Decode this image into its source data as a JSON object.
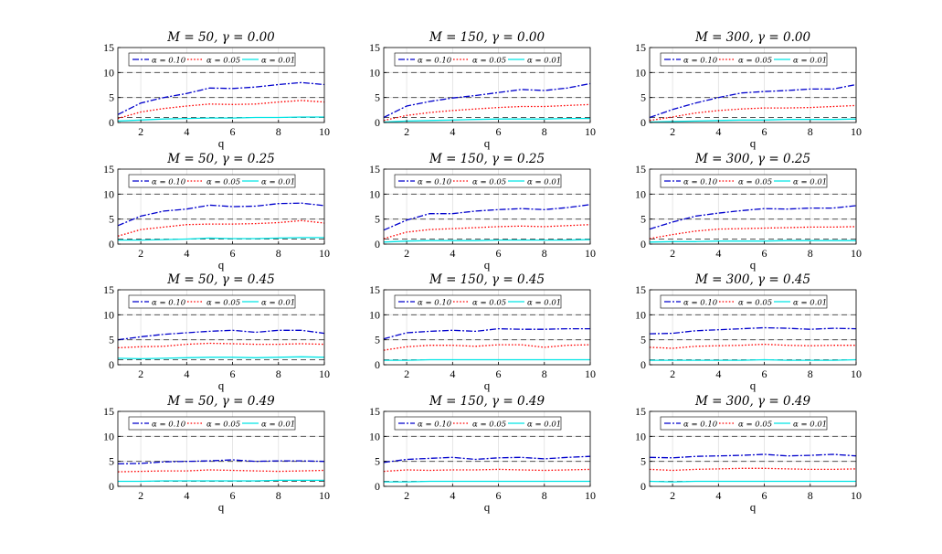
{
  "chart_data": [
    {
      "type": "line",
      "title": "M = 50, γ = 0.00",
      "xlabel": "q",
      "ylabel": "",
      "x": [
        1,
        2,
        3,
        4,
        5,
        6,
        7,
        8,
        9,
        10
      ],
      "xlim": [
        1,
        10
      ],
      "ylim": [
        0,
        15
      ],
      "xticks": [
        "2",
        "4",
        "6",
        "8",
        "10"
      ],
      "yticks": [
        "0",
        "5",
        "10",
        "15"
      ],
      "reference_lines": [
        1,
        5,
        10
      ],
      "grid": true,
      "legend_position": "top",
      "series": [
        {
          "name": "α = 0.10",
          "values": [
            1.6,
            3.9,
            5.0,
            5.8,
            6.9,
            6.8,
            7.1,
            7.6,
            8.0,
            7.6
          ]
        },
        {
          "name": "α = 0.05",
          "values": [
            0.8,
            2.1,
            2.8,
            3.3,
            3.7,
            3.6,
            3.7,
            4.1,
            4.4,
            4.1
          ]
        },
        {
          "name": "α = 0.01",
          "values": [
            0.3,
            0.5,
            0.7,
            0.8,
            0.9,
            0.9,
            1.0,
            1.0,
            1.1,
            1.1
          ]
        }
      ]
    },
    {
      "type": "line",
      "title": "M = 150, γ = 0.00",
      "xlabel": "q",
      "ylabel": "",
      "x": [
        1,
        2,
        3,
        4,
        5,
        6,
        7,
        8,
        9,
        10
      ],
      "xlim": [
        1,
        10
      ],
      "ylim": [
        0,
        15
      ],
      "xticks": [
        "2",
        "4",
        "6",
        "8",
        "10"
      ],
      "yticks": [
        "0",
        "5",
        "10",
        "15"
      ],
      "reference_lines": [
        1,
        5,
        10
      ],
      "grid": true,
      "legend_position": "top",
      "series": [
        {
          "name": "α = 0.10",
          "values": [
            1.0,
            3.3,
            4.2,
            4.9,
            5.4,
            6.0,
            6.6,
            6.4,
            6.9,
            7.8
          ]
        },
        {
          "name": "α = 0.05",
          "values": [
            0.4,
            1.4,
            2.0,
            2.4,
            2.7,
            3.0,
            3.2,
            3.2,
            3.4,
            3.6
          ]
        },
        {
          "name": "α = 0.01",
          "values": [
            0.1,
            0.3,
            0.4,
            0.5,
            0.6,
            0.7,
            0.7,
            0.7,
            0.8,
            0.8
          ]
        }
      ]
    },
    {
      "type": "line",
      "title": "M = 300, γ = 0.00",
      "xlabel": "q",
      "ylabel": "",
      "x": [
        1,
        2,
        3,
        4,
        5,
        6,
        7,
        8,
        9,
        10
      ],
      "xlim": [
        1,
        10
      ],
      "ylim": [
        0,
        15
      ],
      "xticks": [
        "2",
        "4",
        "6",
        "8",
        "10"
      ],
      "yticks": [
        "0",
        "5",
        "10",
        "15"
      ],
      "reference_lines": [
        1,
        5,
        10
      ],
      "grid": true,
      "legend_position": "top",
      "series": [
        {
          "name": "α = 0.10",
          "values": [
            1.0,
            2.6,
            3.9,
            5.0,
            5.9,
            6.2,
            6.4,
            6.7,
            6.7,
            7.6
          ]
        },
        {
          "name": "α = 0.05",
          "values": [
            0.4,
            1.1,
            1.9,
            2.4,
            2.7,
            2.9,
            2.9,
            3.0,
            3.2,
            3.4
          ]
        },
        {
          "name": "α = 0.01",
          "values": [
            0.1,
            0.2,
            0.3,
            0.4,
            0.5,
            0.5,
            0.6,
            0.6,
            0.6,
            0.7
          ]
        }
      ]
    },
    {
      "type": "line",
      "title": "M = 50, γ = 0.25",
      "xlabel": "q",
      "ylabel": "",
      "x": [
        1,
        2,
        3,
        4,
        5,
        6,
        7,
        8,
        9,
        10
      ],
      "xlim": [
        1,
        10
      ],
      "ylim": [
        0,
        15
      ],
      "xticks": [
        "2",
        "4",
        "6",
        "8",
        "10"
      ],
      "yticks": [
        "0",
        "5",
        "10",
        "15"
      ],
      "reference_lines": [
        1,
        5,
        10
      ],
      "grid": true,
      "legend_position": "top",
      "series": [
        {
          "name": "α = 0.10",
          "values": [
            3.7,
            5.6,
            6.6,
            7.0,
            7.8,
            7.5,
            7.6,
            8.1,
            8.2,
            7.7
          ]
        },
        {
          "name": "α = 0.05",
          "values": [
            1.6,
            2.9,
            3.4,
            3.9,
            4.0,
            4.0,
            4.1,
            4.3,
            4.7,
            4.2
          ]
        },
        {
          "name": "α = 0.01",
          "values": [
            0.8,
            0.8,
            0.9,
            1.0,
            1.2,
            1.1,
            1.1,
            1.2,
            1.3,
            1.3
          ]
        }
      ]
    },
    {
      "type": "line",
      "title": "M = 150, γ = 0.25",
      "xlabel": "q",
      "ylabel": "",
      "x": [
        1,
        2,
        3,
        4,
        5,
        6,
        7,
        8,
        9,
        10
      ],
      "xlim": [
        1,
        10
      ],
      "ylim": [
        0,
        15
      ],
      "xticks": [
        "2",
        "4",
        "6",
        "8",
        "10"
      ],
      "yticks": [
        "0",
        "5",
        "10",
        "15"
      ],
      "reference_lines": [
        1,
        5,
        10
      ],
      "grid": true,
      "legend_position": "top",
      "series": [
        {
          "name": "α = 0.10",
          "values": [
            2.8,
            4.8,
            6.1,
            6.1,
            6.6,
            6.9,
            7.1,
            6.9,
            7.3,
            7.9
          ]
        },
        {
          "name": "α = 0.05",
          "values": [
            1.1,
            2.4,
            2.9,
            3.1,
            3.3,
            3.5,
            3.6,
            3.5,
            3.7,
            3.9
          ]
        },
        {
          "name": "α = 0.01",
          "values": [
            0.4,
            0.6,
            0.7,
            0.7,
            0.7,
            0.8,
            0.8,
            0.8,
            0.8,
            0.9
          ]
        }
      ]
    },
    {
      "type": "line",
      "title": "M = 300, γ = 0.25",
      "xlabel": "q",
      "ylabel": "",
      "x": [
        1,
        2,
        3,
        4,
        5,
        6,
        7,
        8,
        9,
        10
      ],
      "xlim": [
        1,
        10
      ],
      "ylim": [
        0,
        15
      ],
      "xticks": [
        "2",
        "4",
        "6",
        "8",
        "10"
      ],
      "yticks": [
        "0",
        "5",
        "10",
        "15"
      ],
      "reference_lines": [
        1,
        5,
        10
      ],
      "grid": true,
      "legend_position": "top",
      "series": [
        {
          "name": "α = 0.10",
          "values": [
            3.0,
            4.4,
            5.6,
            6.2,
            6.7,
            7.1,
            7.0,
            7.2,
            7.2,
            7.7
          ]
        },
        {
          "name": "α = 0.05",
          "values": [
            1.1,
            1.9,
            2.6,
            3.0,
            3.1,
            3.2,
            3.3,
            3.4,
            3.4,
            3.5
          ]
        },
        {
          "name": "α = 0.01",
          "values": [
            0.4,
            0.5,
            0.5,
            0.6,
            0.6,
            0.6,
            0.7,
            0.7,
            0.7,
            0.7
          ]
        }
      ]
    },
    {
      "type": "line",
      "title": "M = 50, γ = 0.45",
      "xlabel": "q",
      "ylabel": "",
      "x": [
        1,
        2,
        3,
        4,
        5,
        6,
        7,
        8,
        9,
        10
      ],
      "xlim": [
        1,
        10
      ],
      "ylim": [
        0,
        15
      ],
      "xticks": [
        "2",
        "4",
        "6",
        "8",
        "10"
      ],
      "yticks": [
        "0",
        "5",
        "10",
        "15"
      ],
      "reference_lines": [
        1,
        5,
        10
      ],
      "grid": true,
      "legend_position": "top",
      "series": [
        {
          "name": "α = 0.10",
          "values": [
            5.0,
            5.6,
            6.1,
            6.4,
            6.7,
            6.9,
            6.5,
            6.9,
            6.9,
            6.3
          ]
        },
        {
          "name": "α = 0.05",
          "values": [
            3.4,
            3.6,
            3.7,
            4.1,
            4.3,
            4.2,
            4.1,
            4.1,
            4.2,
            4.1
          ]
        },
        {
          "name": "α = 0.01",
          "values": [
            1.3,
            1.2,
            1.3,
            1.4,
            1.5,
            1.5,
            1.4,
            1.5,
            1.6,
            1.5
          ]
        }
      ]
    },
    {
      "type": "line",
      "title": "M = 150, γ = 0.45",
      "xlabel": "q",
      "ylabel": "",
      "x": [
        1,
        2,
        3,
        4,
        5,
        6,
        7,
        8,
        9,
        10
      ],
      "xlim": [
        1,
        10
      ],
      "ylim": [
        0,
        15
      ],
      "xticks": [
        "2",
        "4",
        "6",
        "8",
        "10"
      ],
      "yticks": [
        "0",
        "5",
        "10",
        "15"
      ],
      "reference_lines": [
        1,
        5,
        10
      ],
      "grid": true,
      "legend_position": "top",
      "series": [
        {
          "name": "α = 0.10",
          "values": [
            5.2,
            6.4,
            6.7,
            6.9,
            6.7,
            7.2,
            7.1,
            7.1,
            7.2,
            7.2
          ]
        },
        {
          "name": "α = 0.05",
          "values": [
            2.9,
            3.6,
            3.9,
            3.9,
            3.7,
            4.0,
            4.0,
            3.5,
            3.9,
            4.0
          ]
        },
        {
          "name": "α = 0.01",
          "values": [
            0.9,
            0.9,
            1.0,
            1.0,
            1.0,
            1.0,
            1.0,
            1.0,
            1.0,
            1.0
          ]
        }
      ]
    },
    {
      "type": "line",
      "title": "M = 300, γ = 0.45",
      "xlabel": "q",
      "ylabel": "",
      "x": [
        1,
        2,
        3,
        4,
        5,
        6,
        7,
        8,
        9,
        10
      ],
      "xlim": [
        1,
        10
      ],
      "ylim": [
        0,
        15
      ],
      "xticks": [
        "2",
        "4",
        "6",
        "8",
        "10"
      ],
      "yticks": [
        "0",
        "5",
        "10",
        "15"
      ],
      "reference_lines": [
        1,
        5,
        10
      ],
      "grid": true,
      "legend_position": "top",
      "series": [
        {
          "name": "α = 0.10",
          "values": [
            6.2,
            6.3,
            6.8,
            7.0,
            7.2,
            7.4,
            7.3,
            7.1,
            7.3,
            7.2
          ]
        },
        {
          "name": "α = 0.05",
          "values": [
            3.5,
            3.3,
            3.7,
            3.8,
            3.9,
            4.1,
            3.9,
            3.8,
            3.9,
            3.9
          ]
        },
        {
          "name": "α = 0.01",
          "values": [
            0.9,
            0.9,
            0.9,
            0.9,
            0.9,
            1.0,
            0.9,
            0.9,
            0.9,
            1.0
          ]
        }
      ]
    },
    {
      "type": "line",
      "title": "M = 50, γ = 0.49",
      "xlabel": "q",
      "ylabel": "",
      "x": [
        1,
        2,
        3,
        4,
        5,
        6,
        7,
        8,
        9,
        10
      ],
      "xlim": [
        1,
        10
      ],
      "ylim": [
        0,
        15
      ],
      "xticks": [
        "2",
        "4",
        "6",
        "8",
        "10"
      ],
      "yticks": [
        "0",
        "5",
        "10",
        "15"
      ],
      "reference_lines": [
        1,
        5,
        10
      ],
      "grid": true,
      "legend_position": "top",
      "series": [
        {
          "name": "α = 0.10",
          "values": [
            4.5,
            4.6,
            4.9,
            5.0,
            5.1,
            5.3,
            5.0,
            5.1,
            5.1,
            5.0
          ]
        },
        {
          "name": "α = 0.05",
          "values": [
            2.9,
            3.0,
            3.1,
            3.1,
            3.3,
            3.2,
            3.1,
            3.0,
            3.1,
            3.2
          ]
        },
        {
          "name": "α = 0.01",
          "values": [
            1.0,
            1.0,
            1.1,
            1.1,
            1.1,
            1.1,
            1.1,
            1.2,
            1.2,
            1.2
          ]
        }
      ]
    },
    {
      "type": "line",
      "title": "M = 150, γ = 0.49",
      "xlabel": "q",
      "ylabel": "",
      "x": [
        1,
        2,
        3,
        4,
        5,
        6,
        7,
        8,
        9,
        10
      ],
      "xlim": [
        1,
        10
      ],
      "ylim": [
        0,
        15
      ],
      "xticks": [
        "2",
        "4",
        "6",
        "8",
        "10"
      ],
      "yticks": [
        "0",
        "5",
        "10",
        "15"
      ],
      "reference_lines": [
        1,
        5,
        10
      ],
      "grid": true,
      "legend_position": "top",
      "series": [
        {
          "name": "α = 0.10",
          "values": [
            4.8,
            5.4,
            5.6,
            5.8,
            5.4,
            5.7,
            5.8,
            5.5,
            5.8,
            6.0
          ]
        },
        {
          "name": "α = 0.05",
          "values": [
            3.0,
            3.3,
            3.2,
            3.3,
            3.3,
            3.4,
            3.3,
            3.2,
            3.3,
            3.4
          ]
        },
        {
          "name": "α = 0.01",
          "values": [
            0.9,
            0.9,
            1.0,
            1.0,
            1.0,
            1.0,
            1.0,
            1.0,
            1.0,
            1.0
          ]
        }
      ]
    },
    {
      "type": "line",
      "title": "M = 300, γ = 0.49",
      "xlabel": "q",
      "ylabel": "",
      "x": [
        1,
        2,
        3,
        4,
        5,
        6,
        7,
        8,
        9,
        10
      ],
      "xlim": [
        1,
        10
      ],
      "ylim": [
        0,
        15
      ],
      "xticks": [
        "2",
        "4",
        "6",
        "8",
        "10"
      ],
      "yticks": [
        "0",
        "5",
        "10",
        "15"
      ],
      "reference_lines": [
        1,
        5,
        10
      ],
      "grid": true,
      "legend_position": "top",
      "series": [
        {
          "name": "α = 0.10",
          "values": [
            5.8,
            5.7,
            6.0,
            6.1,
            6.2,
            6.4,
            6.1,
            6.2,
            6.4,
            6.1
          ]
        },
        {
          "name": "α = 0.05",
          "values": [
            3.4,
            3.2,
            3.4,
            3.5,
            3.6,
            3.6,
            3.5,
            3.4,
            3.4,
            3.5
          ]
        },
        {
          "name": "α = 0.01",
          "values": [
            1.0,
            0.9,
            1.0,
            1.0,
            1.0,
            1.0,
            1.0,
            1.0,
            1.0,
            1.0
          ]
        }
      ]
    }
  ],
  "colors": {
    "series": [
      "#0000cc",
      "#ff0000",
      "#00e5e5"
    ],
    "reference": "#555555",
    "grid": "#e0e0e0",
    "axes": "#000000"
  }
}
